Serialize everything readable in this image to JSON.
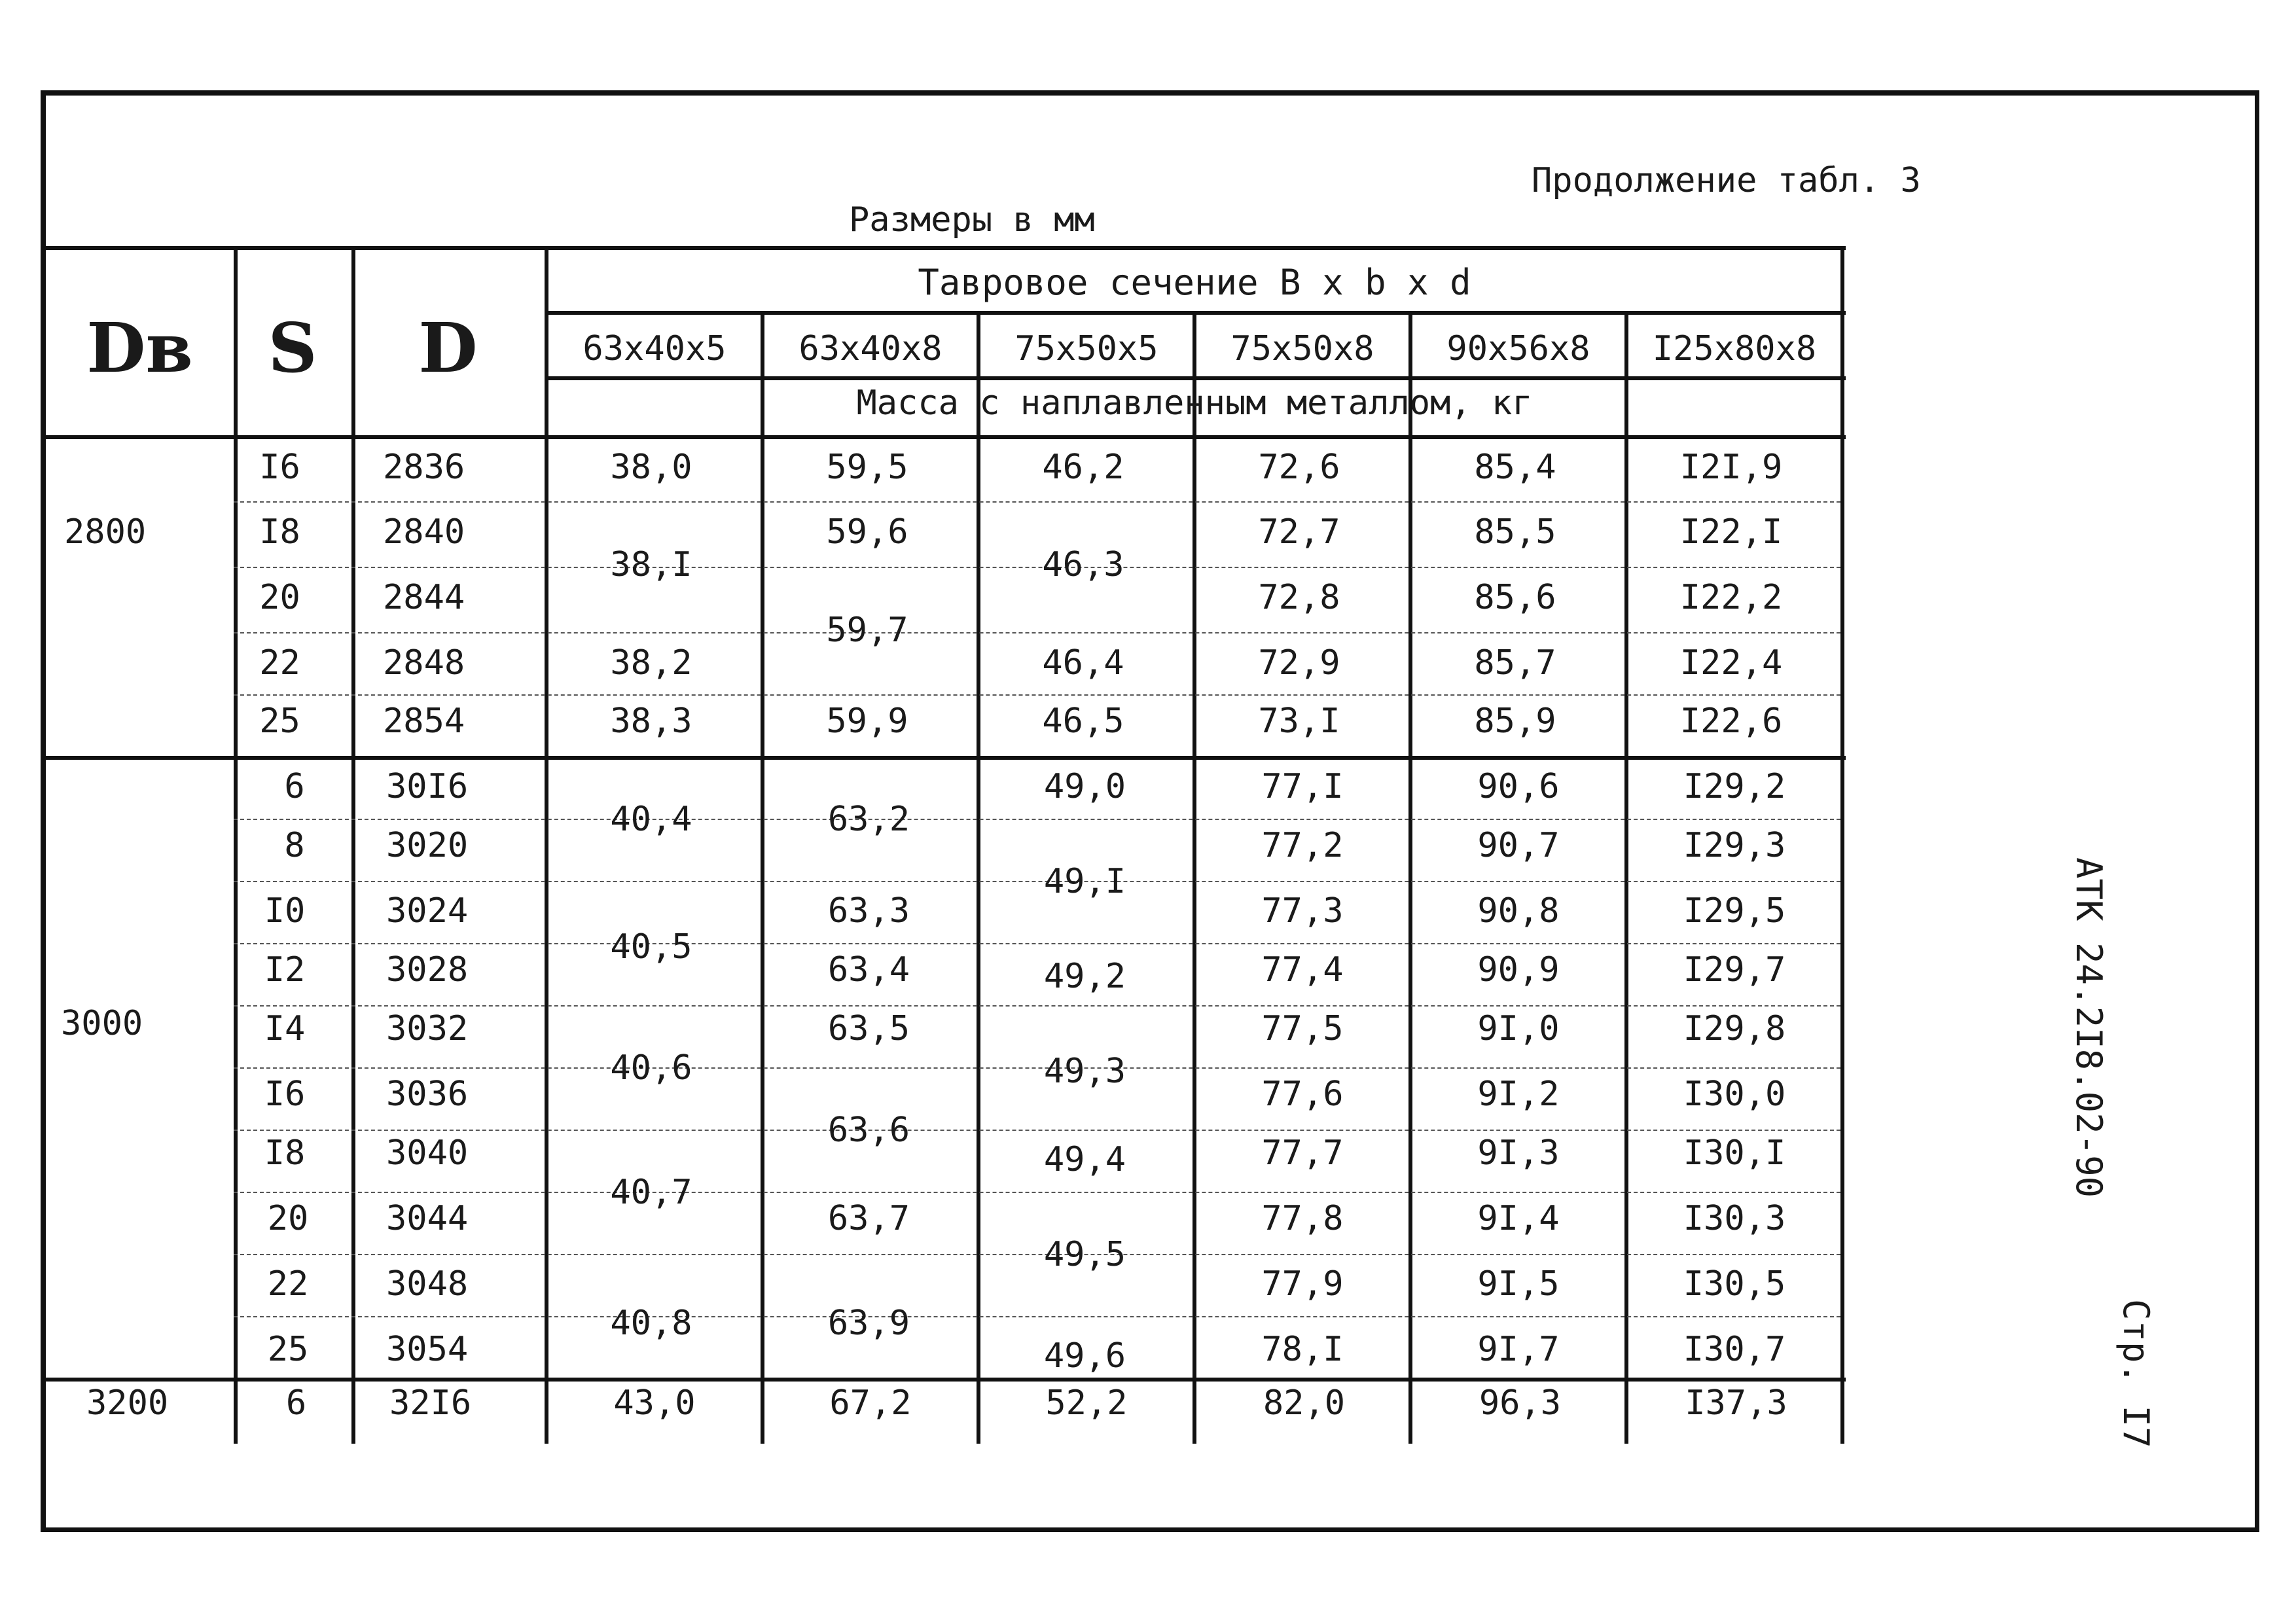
{
  "header": {
    "continuation": "Продолжение табл. 3",
    "sizes": "Размеры в мм",
    "side_code": "АТК 24.2I8.02-90",
    "side_page": "Стр. I7"
  },
  "table": {
    "col_db": "Dв",
    "col_s": "S",
    "col_d": "D",
    "group_title": "Тавровое сечение  B x b x d",
    "mass_title": "Масса с наплавленным металлом, кг",
    "sections": [
      "63x40x5",
      "63x40x8",
      "75x50x5",
      "75x50x8",
      "90x56x8",
      "I25x80x8"
    ],
    "db_values": [
      "2800",
      "3000",
      "3200"
    ],
    "rows": [
      {
        "s": "I6",
        "d": "2836"
      },
      {
        "s": "I8",
        "d": "2840"
      },
      {
        "s": "20",
        "d": "2844"
      },
      {
        "s": "22",
        "d": "2848"
      },
      {
        "s": "25",
        "d": "2854"
      },
      {
        "s": "6",
        "d": "30I6"
      },
      {
        "s": "8",
        "d": "3020"
      },
      {
        "s": "I0",
        "d": "3024"
      },
      {
        "s": "I2",
        "d": "3028"
      },
      {
        "s": "I4",
        "d": "3032"
      },
      {
        "s": "I6",
        "d": "3036"
      },
      {
        "s": "I8",
        "d": "3040"
      },
      {
        "s": "20",
        "d": "3044"
      },
      {
        "s": "22",
        "d": "3048"
      },
      {
        "s": "25",
        "d": "3054"
      },
      {
        "s": "6",
        "d": "32I6"
      }
    ],
    "c1": [
      "38,0",
      "38,I",
      "38,2",
      "38,3",
      "40,4",
      "40,5",
      "40,6",
      "40,7",
      "40,8",
      "43,0"
    ],
    "c2": [
      "59,5",
      "59,6",
      "59,7",
      "59,9",
      "63,2",
      "63,3",
      "63,4",
      "63,5",
      "63,6",
      "63,7",
      "63,9",
      "67,2"
    ],
    "c3": [
      "46,2",
      "46,3",
      "46,4",
      "46,5",
      "49,0",
      "49,I",
      "49,2",
      "49,3",
      "49,4",
      "49,5",
      "49,6",
      "52,2"
    ],
    "c4": [
      "72,6",
      "72,7",
      "72,8",
      "72,9",
      "73,I",
      "77,I",
      "77,2",
      "77,3",
      "77,4",
      "77,5",
      "77,6",
      "77,7",
      "77,8",
      "77,9",
      "78,I",
      "82,0"
    ],
    "c5": [
      "85,4",
      "85,5",
      "85,6",
      "85,7",
      "85,9",
      "90,6",
      "90,7",
      "90,8",
      "90,9",
      "9I,0",
      "9I,2",
      "9I,3",
      "9I,4",
      "9I,5",
      "9I,7",
      "96,3"
    ],
    "c6": [
      "I2I,9",
      "I22,I",
      "I22,2",
      "I22,4",
      "I22,6",
      "I29,2",
      "I29,3",
      "I29,5",
      "I29,7",
      "I29,8",
      "I30,0",
      "I30,I",
      "I30,3",
      "I30,5",
      "I30,7",
      "I37,3"
    ]
  }
}
